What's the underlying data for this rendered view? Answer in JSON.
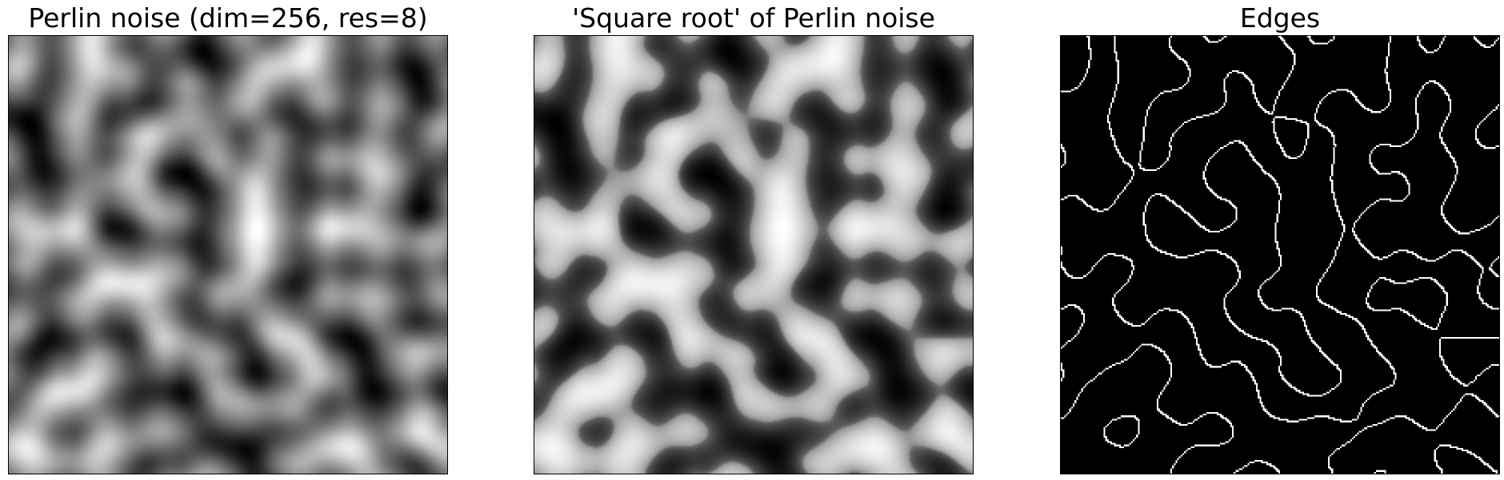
{
  "figure": {
    "panels": [
      {
        "title": "Perlin noise (dim=256, res=8)",
        "image_kind": "perlin-noise",
        "colormap": "grayscale",
        "dim": 256,
        "res": 8
      },
      {
        "title": "'Square root' of Perlin noise",
        "image_kind": "sqrt-perlin-noise",
        "colormap": "grayscale"
      },
      {
        "title": "Edges",
        "image_kind": "edge-map",
        "colormap": "grayscale"
      }
    ],
    "colors": {
      "background": "#ffffff",
      "axes_border": "#000000",
      "dark": "#000000",
      "light": "#ffffff"
    }
  }
}
